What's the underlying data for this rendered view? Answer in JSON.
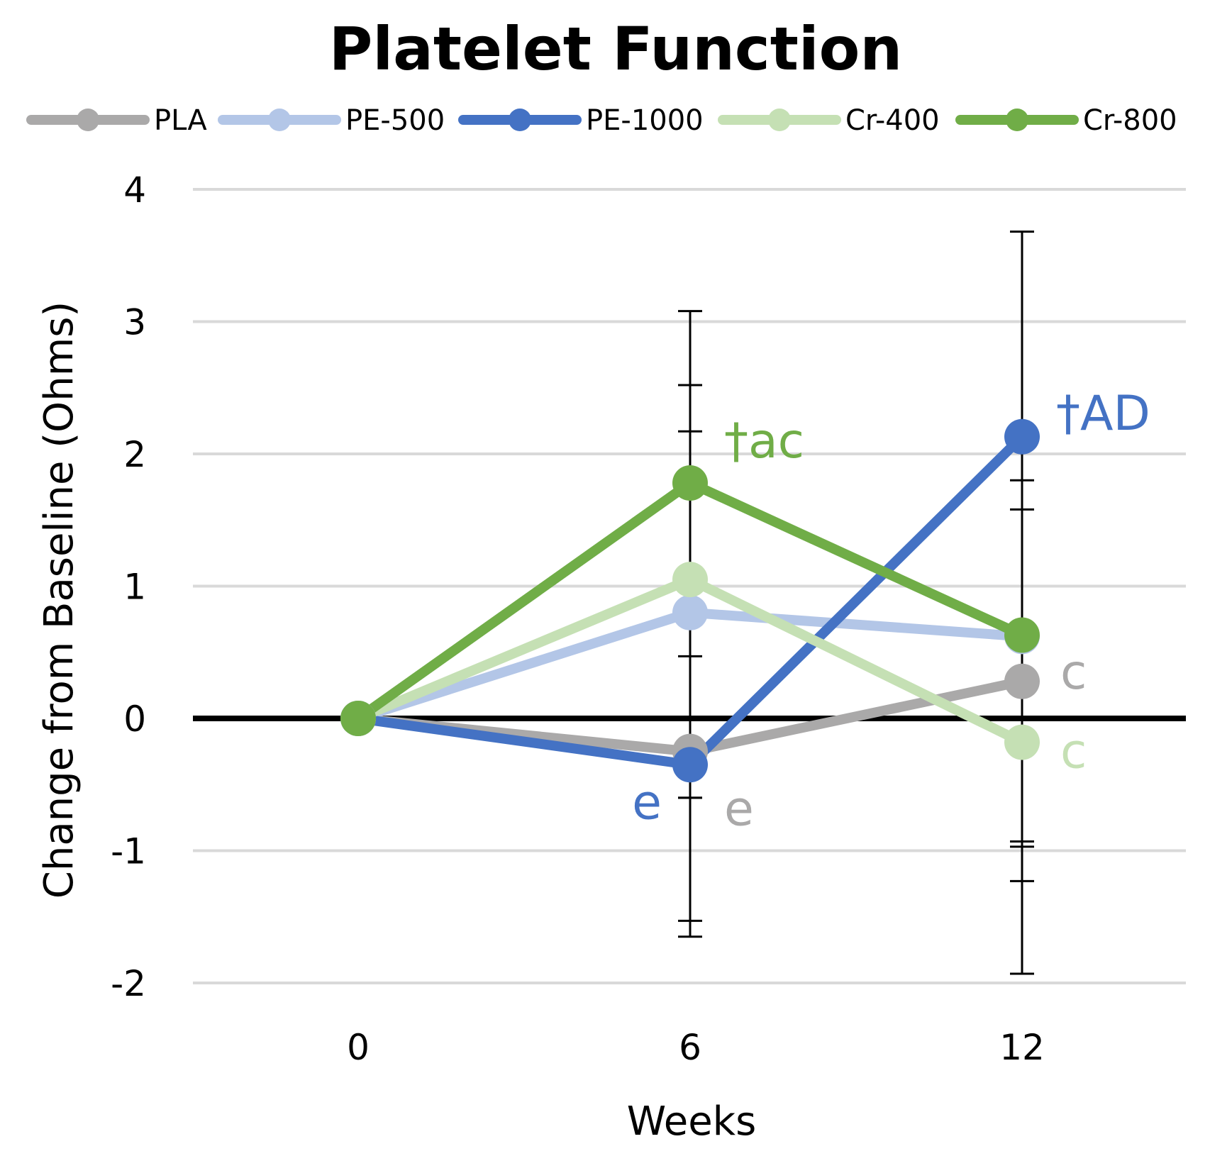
{
  "chart_data": {
    "type": "line",
    "title": "Platelet Function",
    "xlabel": "Weeks",
    "ylabel": "Change from Baseline (Ohms)",
    "categories": [
      "0",
      "6",
      "12"
    ],
    "ylim": [
      -2,
      4
    ],
    "yticks": [
      "-2",
      "-1",
      "0",
      "1",
      "2",
      "3",
      "4"
    ],
    "grid": true,
    "legend_position": "top",
    "series": [
      {
        "name": "PLA",
        "color": "#aaa9a9",
        "values": [
          0,
          -0.25,
          0.28
        ]
      },
      {
        "name": "PE-500",
        "color": "#b3c6e7",
        "values": [
          0,
          0.8,
          0.62
        ]
      },
      {
        "name": "PE-1000",
        "color": "#4472c4",
        "values": [
          0,
          -0.35,
          2.13
        ]
      },
      {
        "name": "Cr-400",
        "color": "#c5e0b4",
        "values": [
          0,
          1.05,
          -0.18
        ]
      },
      {
        "name": "Cr-800",
        "color": "#70ad47",
        "values": [
          0,
          1.78,
          0.63
        ]
      }
    ],
    "error_bars": [
      {
        "x": "6",
        "low": -1.65,
        "high": 3.08
      },
      {
        "x": "6",
        "low": -1.53,
        "high": 2.52
      },
      {
        "x": "6",
        "low": -0.6,
        "high": 2.17
      },
      {
        "x": "6",
        "low": -0.6,
        "high": 0.47
      },
      {
        "x": "12",
        "low": -1.93,
        "high": 3.68
      },
      {
        "x": "12",
        "low": -1.23,
        "high": 1.8
      },
      {
        "x": "12",
        "low": -0.93,
        "high": 1.58
      },
      {
        "x": "12",
        "low": -0.97,
        "high": 0.62
      }
    ],
    "annotations": [
      {
        "text": "†ac",
        "series": "Cr-800",
        "x": "6",
        "color": "#70ad47"
      },
      {
        "text": "†AD",
        "series": "PE-1000",
        "x": "12",
        "color": "#4472c4"
      },
      {
        "text": "c",
        "series": "PLA",
        "x": "12",
        "color": "#aaa9a9"
      },
      {
        "text": "c",
        "series": "Cr-400",
        "x": "12",
        "color": "#c5e0b4"
      },
      {
        "text": "e",
        "series": "PE-1000",
        "x": "6",
        "color": "#4472c4"
      },
      {
        "text": "e",
        "series": "PLA",
        "x": "6",
        "color": "#aaa9a9"
      }
    ]
  }
}
